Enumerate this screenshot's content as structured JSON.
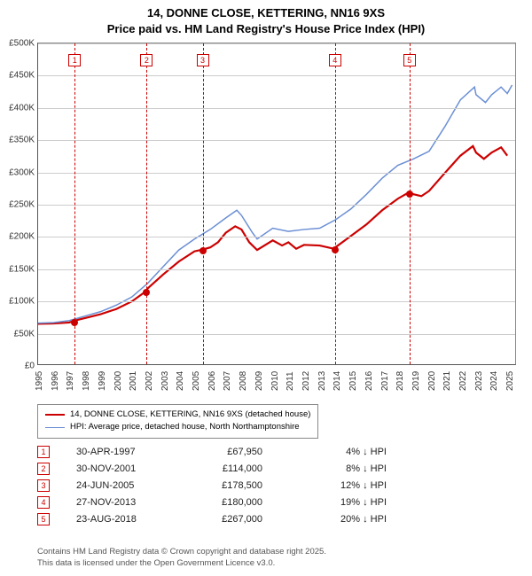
{
  "title": {
    "line1": "14, DONNE CLOSE, KETTERING, NN16 9XS",
    "line2": "Price paid vs. HM Land Registry's House Price Index (HPI)"
  },
  "chart": {
    "type": "line",
    "background_color": "#ffffff",
    "grid_color": "#cccccc",
    "axis_color": "#555555",
    "x": {
      "min": 1995,
      "max": 2025.5,
      "ticks": [
        1995,
        1996,
        1997,
        1998,
        1999,
        2000,
        2001,
        2002,
        2003,
        2004,
        2005,
        2006,
        2007,
        2008,
        2009,
        2010,
        2011,
        2012,
        2013,
        2014,
        2015,
        2016,
        2017,
        2018,
        2019,
        2020,
        2021,
        2022,
        2023,
        2024,
        2025
      ]
    },
    "y": {
      "min": 0,
      "max": 500000,
      "step": 50000,
      "labels": [
        "£0",
        "£50K",
        "£100K",
        "£150K",
        "£200K",
        "£250K",
        "£300K",
        "£350K",
        "£400K",
        "£450K",
        "£500K"
      ]
    },
    "series": [
      {
        "name": "14, DONNE CLOSE, KETTERING, NN16 9XS (detached house)",
        "color": "#cc0000",
        "width": 2.2,
        "points": [
          [
            1995,
            63000
          ],
          [
            1996,
            63500
          ],
          [
            1997,
            65000
          ],
          [
            1997.33,
            67950
          ],
          [
            1998,
            72000
          ],
          [
            1999,
            78000
          ],
          [
            2000,
            86000
          ],
          [
            2001,
            98000
          ],
          [
            2001.91,
            114000
          ],
          [
            2002,
            118000
          ],
          [
            2003,
            140000
          ],
          [
            2004,
            160000
          ],
          [
            2005,
            176000
          ],
          [
            2005.48,
            178500
          ],
          [
            2006,
            182000
          ],
          [
            2006.5,
            190000
          ],
          [
            2007,
            205000
          ],
          [
            2007.6,
            215000
          ],
          [
            2008,
            210000
          ],
          [
            2008.5,
            190000
          ],
          [
            2009,
            178000
          ],
          [
            2010,
            193000
          ],
          [
            2010.6,
            185000
          ],
          [
            2011,
            190000
          ],
          [
            2011.5,
            180000
          ],
          [
            2012,
            186000
          ],
          [
            2013,
            185000
          ],
          [
            2013.91,
            180000
          ],
          [
            2014,
            182000
          ],
          [
            2015,
            200000
          ],
          [
            2016,
            218000
          ],
          [
            2017,
            240000
          ],
          [
            2018,
            258000
          ],
          [
            2018.65,
            267000
          ],
          [
            2019,
            265000
          ],
          [
            2019.5,
            262000
          ],
          [
            2020,
            270000
          ],
          [
            2021,
            298000
          ],
          [
            2022,
            325000
          ],
          [
            2022.8,
            340000
          ],
          [
            2023,
            330000
          ],
          [
            2023.5,
            320000
          ],
          [
            2024,
            330000
          ],
          [
            2024.6,
            338000
          ],
          [
            2025,
            325000
          ]
        ]
      },
      {
        "name": "HPI: Average price, detached house, North Northamptonshire",
        "color": "#6b8fd4",
        "width": 1.5,
        "points": [
          [
            1995,
            64000
          ],
          [
            1996,
            65000
          ],
          [
            1997,
            68000
          ],
          [
            1998,
            75000
          ],
          [
            1999,
            82000
          ],
          [
            2000,
            92000
          ],
          [
            2001,
            105000
          ],
          [
            2002,
            126000
          ],
          [
            2003,
            152000
          ],
          [
            2004,
            178000
          ],
          [
            2005,
            195000
          ],
          [
            2006,
            210000
          ],
          [
            2007,
            228000
          ],
          [
            2007.7,
            240000
          ],
          [
            2008,
            232000
          ],
          [
            2008.7,
            205000
          ],
          [
            2009,
            195000
          ],
          [
            2010,
            212000
          ],
          [
            2011,
            207000
          ],
          [
            2012,
            210000
          ],
          [
            2013,
            212000
          ],
          [
            2014,
            225000
          ],
          [
            2015,
            242000
          ],
          [
            2016,
            265000
          ],
          [
            2017,
            290000
          ],
          [
            2018,
            310000
          ],
          [
            2019,
            320000
          ],
          [
            2020,
            332000
          ],
          [
            2021,
            370000
          ],
          [
            2022,
            412000
          ],
          [
            2022.9,
            432000
          ],
          [
            2023,
            420000
          ],
          [
            2023.6,
            408000
          ],
          [
            2024,
            420000
          ],
          [
            2024.6,
            432000
          ],
          [
            2025,
            422000
          ],
          [
            2025.3,
            435000
          ]
        ]
      }
    ],
    "markers": [
      {
        "n": "1",
        "x": 1997.33,
        "y": 67950
      },
      {
        "n": "2",
        "x": 2001.91,
        "y": 114000
      },
      {
        "n": "3",
        "x": 2005.48,
        "y": 178500
      },
      {
        "n": "4",
        "x": 2013.91,
        "y": 180000
      },
      {
        "n": "5",
        "x": 2018.65,
        "y": 267000
      }
    ],
    "marker_color": "#cc0000",
    "label_fontsize": 10
  },
  "legend": {
    "items": [
      {
        "color": "#cc0000",
        "width": 2.2,
        "label": "14, DONNE CLOSE, KETTERING, NN16 9XS (detached house)"
      },
      {
        "color": "#6b8fd4",
        "width": 1.5,
        "label": "HPI: Average price, detached house, North Northamptonshire"
      }
    ]
  },
  "sales": [
    {
      "n": "1",
      "date": "30-APR-1997",
      "price": "£67,950",
      "diff": "4% ↓ HPI"
    },
    {
      "n": "2",
      "date": "30-NOV-2001",
      "price": "£114,000",
      "diff": "8% ↓ HPI"
    },
    {
      "n": "3",
      "date": "24-JUN-2005",
      "price": "£178,500",
      "diff": "12% ↓ HPI"
    },
    {
      "n": "4",
      "date": "27-NOV-2013",
      "price": "£180,000",
      "diff": "19% ↓ HPI"
    },
    {
      "n": "5",
      "date": "23-AUG-2018",
      "price": "£267,000",
      "diff": "20% ↓ HPI"
    }
  ],
  "footer": {
    "line1": "Contains HM Land Registry data © Crown copyright and database right 2025.",
    "line2": "This data is licensed under the Open Government Licence v3.0."
  }
}
